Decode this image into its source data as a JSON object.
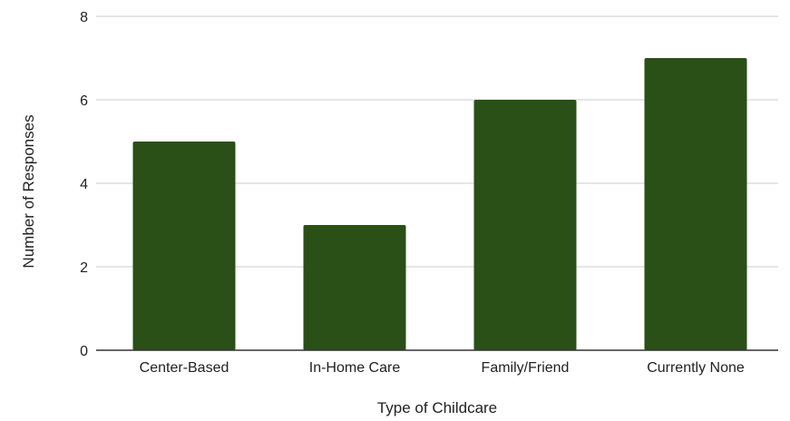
{
  "chart_data": {
    "type": "bar",
    "title": "",
    "xlabel": "Type of Childcare",
    "ylabel": "Number of Responses",
    "categories": [
      "Center-Based",
      "In-Home Care",
      "Family/Friend",
      "Currently None"
    ],
    "values": [
      5,
      3,
      6,
      7
    ],
    "ylim": [
      0,
      8
    ],
    "yticks": [
      "0",
      "2",
      "4",
      "6",
      "8"
    ],
    "grid": true,
    "legend": "none",
    "colors": {
      "bar": "#2a4f17",
      "gridline": "#cccccc",
      "axis": "#333333"
    }
  }
}
